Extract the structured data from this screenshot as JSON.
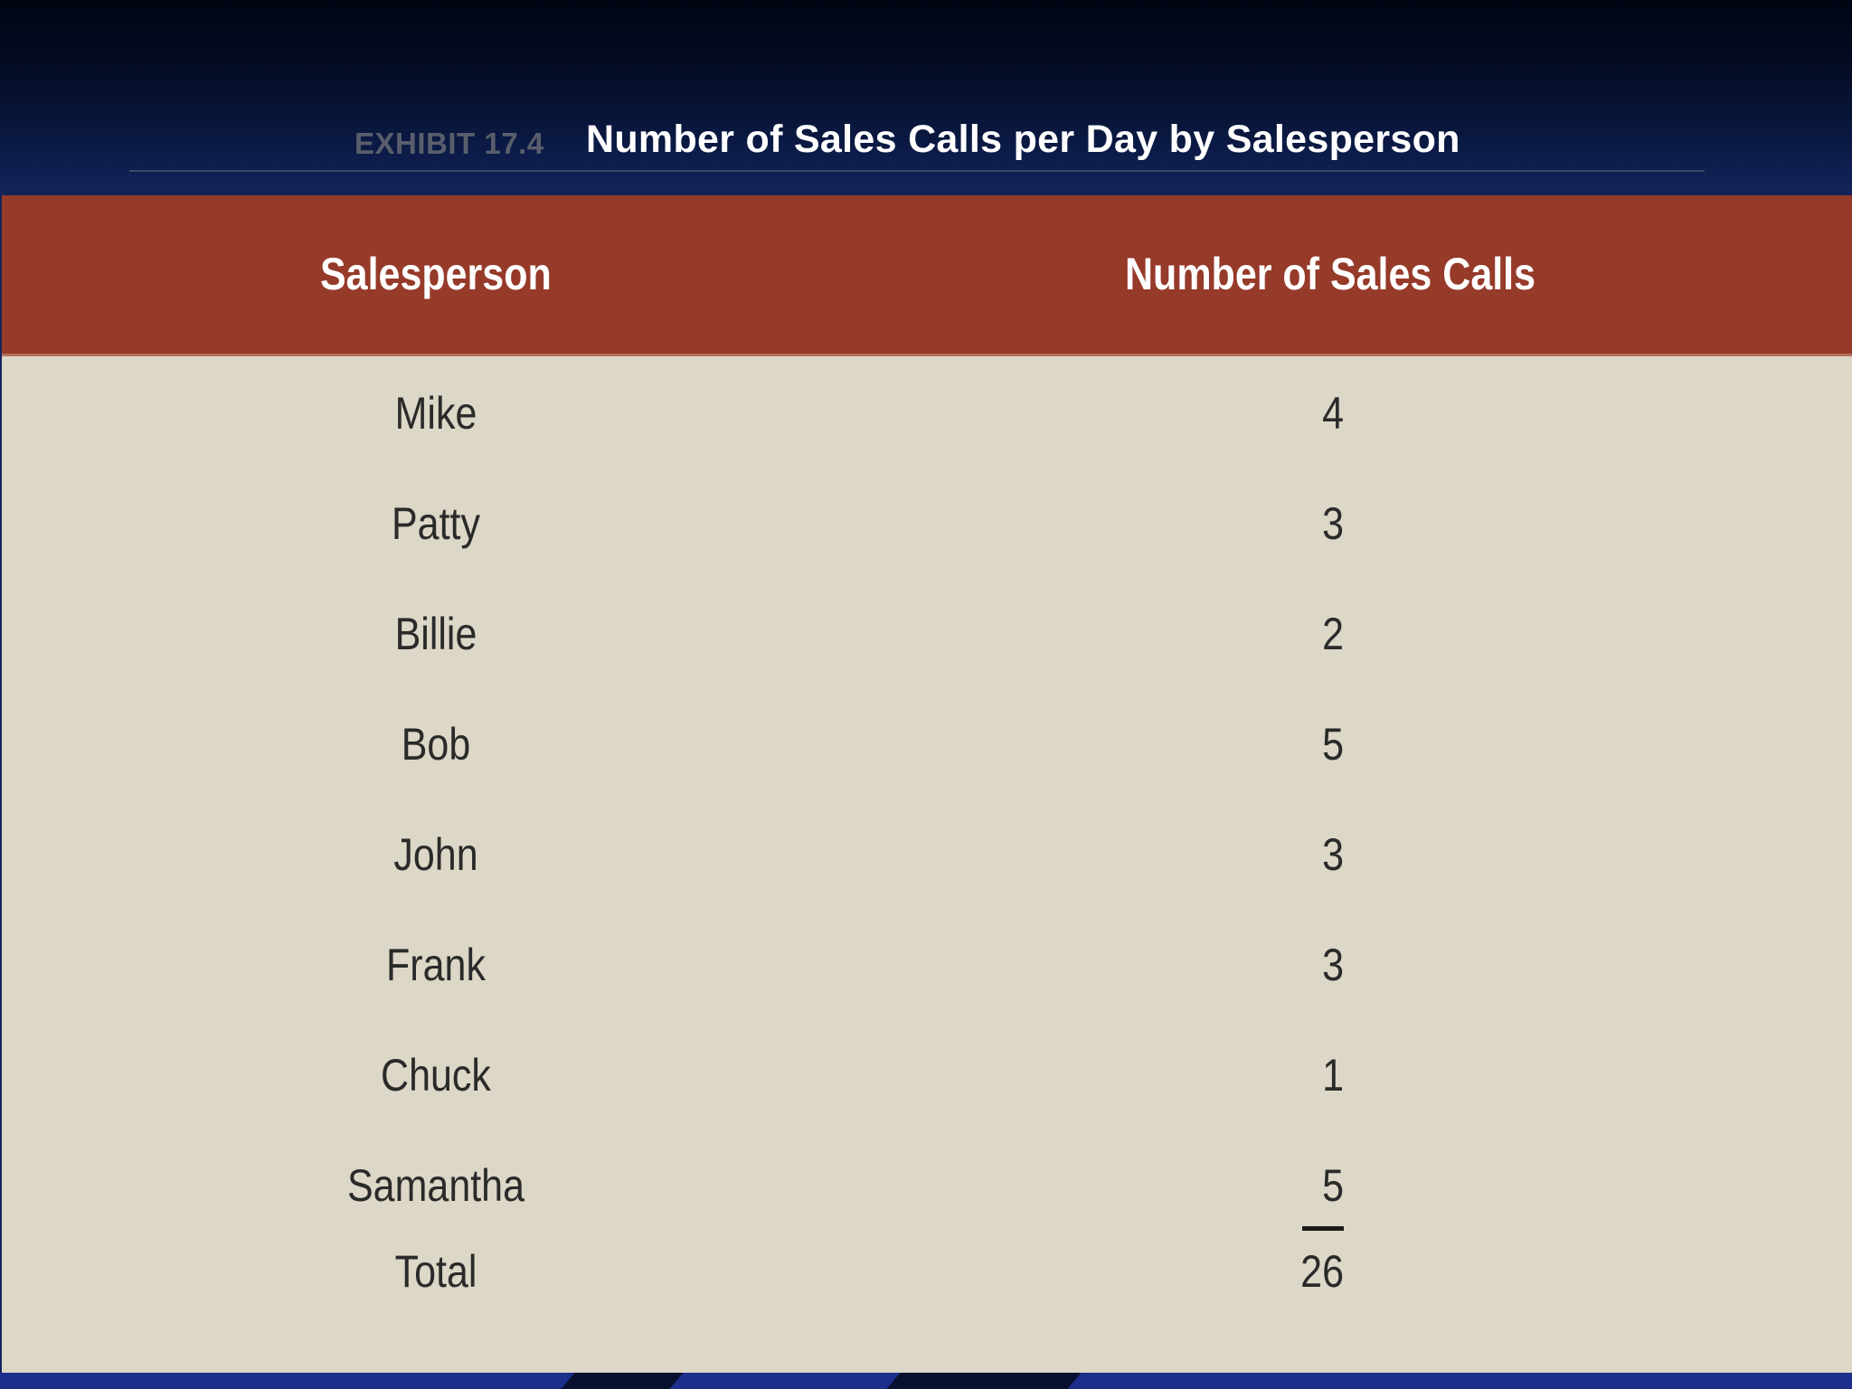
{
  "exhibit": {
    "label": "EXHIBIT 17.4",
    "title": "Number of Sales Calls per Day by Salesperson"
  },
  "table": {
    "headers": {
      "salesperson": "Salesperson",
      "calls": "Number of Sales Calls"
    },
    "rows": [
      {
        "name": "Mike",
        "calls": "4"
      },
      {
        "name": "Patty",
        "calls": "3"
      },
      {
        "name": "Billie",
        "calls": "2"
      },
      {
        "name": "Bob",
        "calls": "5"
      },
      {
        "name": "John",
        "calls": "3"
      },
      {
        "name": "Frank",
        "calls": "3"
      },
      {
        "name": "Chuck",
        "calls": "1"
      },
      {
        "name": "Samantha",
        "calls": "5"
      }
    ],
    "total": {
      "name": "Total",
      "calls": "26"
    }
  },
  "colors": {
    "header_band": "#963a29",
    "table_body": "#dcd7c6",
    "background": "#0b1a44"
  }
}
